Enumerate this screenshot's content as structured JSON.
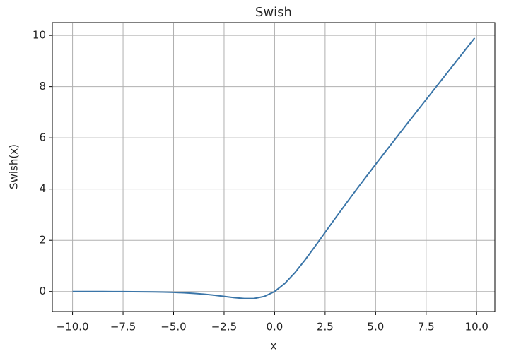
{
  "chart_data": {
    "type": "line",
    "title": "Swish",
    "x_label": "x",
    "y_label": "Swish(x)",
    "x": [
      -10,
      -9.5,
      -9,
      -8.5,
      -8,
      -7.5,
      -7,
      -6.5,
      -6,
      -5.5,
      -5,
      -4.5,
      -4,
      -3.5,
      -3,
      -2.5,
      -2,
      -1.5,
      -1,
      -0.5,
      0,
      0.5,
      1,
      1.5,
      2,
      2.5,
      3,
      3.5,
      4,
      4.5,
      5,
      5.5,
      6,
      6.5,
      7,
      7.5,
      8,
      8.5,
      9,
      9.5,
      9.9
    ],
    "series": [
      {
        "name": "Swish",
        "color": "#3a75a8",
        "values": [
          -0.0005,
          -0.0007,
          -0.0011,
          -0.0017,
          -0.0027,
          -0.0041,
          -0.0064,
          -0.0098,
          -0.0148,
          -0.0224,
          -0.0335,
          -0.0494,
          -0.0719,
          -0.1026,
          -0.1423,
          -0.1897,
          -0.2384,
          -0.2736,
          -0.2689,
          -0.1888,
          0,
          0.3112,
          0.7311,
          1.2264,
          1.7616,
          2.3103,
          2.8577,
          3.3974,
          3.9281,
          4.4506,
          4.9665,
          5.4776,
          5.9852,
          6.4902,
          6.9936,
          7.4959,
          7.9973,
          8.4983,
          8.9989,
          9.4993,
          9.8995
        ]
      }
    ],
    "xlim": [
      -11.0,
      10.9
    ],
    "ylim": [
      -0.78,
      10.5
    ],
    "xticks": [
      {
        "value": -10,
        "label": "−10.0"
      },
      {
        "value": -7.5,
        "label": "−7.5"
      },
      {
        "value": -5,
        "label": "−5.0"
      },
      {
        "value": -2.5,
        "label": "−2.5"
      },
      {
        "value": 0,
        "label": "0.0"
      },
      2.5,
      {
        "value": 5,
        "label": "5.0"
      },
      7.5,
      {
        "value": 10,
        "label": "10.0"
      }
    ],
    "yticks": [
      0,
      2,
      4,
      6,
      8,
      10
    ],
    "grid": true
  }
}
